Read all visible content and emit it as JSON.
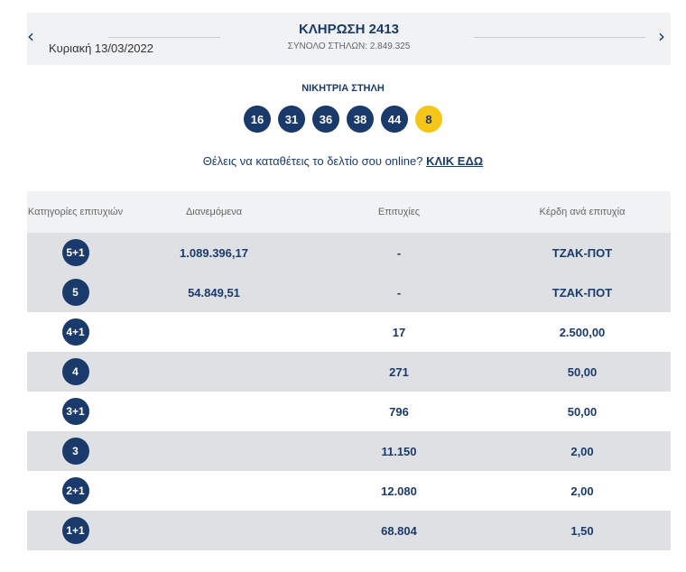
{
  "header": {
    "date": "Κυριακή 13/03/2022",
    "title": "ΚΛΗΡΩΣΗ 2413",
    "total_columns": "ΣΥΝΟΛΟ ΣΤΗΛΩΝ: 2.849.325",
    "prev_icon": "chevron-left-icon",
    "next_icon": "chevron-right-icon"
  },
  "winning": {
    "label": "ΝΙΚΗΤΡΙΑ ΣΤΗΛΗ",
    "numbers": [
      "16",
      "31",
      "36",
      "38",
      "44"
    ],
    "joker": "8"
  },
  "promo": {
    "text": "Θέλεις να καταθέτεις το δελτίο σου online?",
    "link": "ΚΛΙΚ ΕΔΩ"
  },
  "table": {
    "headers": {
      "categories": "Κατηγορίες επιτυχιών",
      "distributed": "Διανεμόμενα",
      "winners": "Επιτυχίες",
      "prize": "Κέρδη ανά επιτυχία"
    },
    "rows": [
      {
        "category": "5+1",
        "distributed": "1.089.396,17",
        "winners": "-",
        "prize": "ΤΖΑΚ-ΠΟΤ"
      },
      {
        "category": "5",
        "distributed": "54.849,51",
        "winners": "-",
        "prize": "ΤΖΑΚ-ΠΟΤ"
      },
      {
        "category": "4+1",
        "distributed": "",
        "winners": "17",
        "prize": "2.500,00"
      },
      {
        "category": "4",
        "distributed": "",
        "winners": "271",
        "prize": "50,00"
      },
      {
        "category": "3+1",
        "distributed": "",
        "winners": "796",
        "prize": "50,00"
      },
      {
        "category": "3",
        "distributed": "",
        "winners": "11.150",
        "prize": "2,00"
      },
      {
        "category": "2+1",
        "distributed": "",
        "winners": "12.080",
        "prize": "2,00"
      },
      {
        "category": "1+1",
        "distributed": "",
        "winners": "68.804",
        "prize": "1,50"
      }
    ]
  },
  "colors": {
    "primary": "#1a3a6b",
    "joker": "#f5c518",
    "band": "#f1f2f4",
    "row_alt": "#dfe0e3"
  }
}
